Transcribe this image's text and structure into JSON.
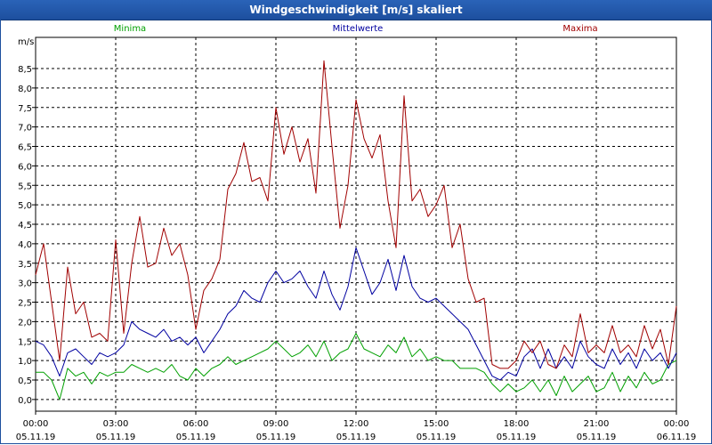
{
  "window": {
    "title": "Windgeschwindigkeit [m/s] skaliert"
  },
  "chart_data": {
    "type": "line",
    "title": "Windgeschwindigkeit [m/s] skaliert",
    "ylabel": "m/s",
    "ylim": [
      -0.3,
      9.3
    ],
    "xlim": [
      0,
      24
    ],
    "grid": true,
    "y_ticks": [
      "0,0",
      "0,5",
      "1,0",
      "1,5",
      "2,0",
      "2,5",
      "3,0",
      "3,5",
      "4,0",
      "4,5",
      "5,0",
      "5,5",
      "6,0",
      "6,5",
      "7,0",
      "7,5",
      "8,0",
      "8,5"
    ],
    "x_ticks": [
      {
        "time": "00:00",
        "date": "05.11.19"
      },
      {
        "time": "03:00",
        "date": "05.11.19"
      },
      {
        "time": "06:00",
        "date": "05.11.19"
      },
      {
        "time": "09:00",
        "date": "05.11.19"
      },
      {
        "time": "12:00",
        "date": "05.11.19"
      },
      {
        "time": "15:00",
        "date": "05.11.19"
      },
      {
        "time": "18:00",
        "date": "05.11.19"
      },
      {
        "time": "21:00",
        "date": "05.11.19"
      },
      {
        "time": "00:00",
        "date": "06.11.19"
      }
    ],
    "series": [
      {
        "name": "Minima",
        "color": "#00a000",
        "x": [
          0,
          0.3,
          0.6,
          0.9,
          1.2,
          1.5,
          1.8,
          2.1,
          2.4,
          2.7,
          3.0,
          3.3,
          3.6,
          3.9,
          4.2,
          4.5,
          4.8,
          5.1,
          5.4,
          5.7,
          6.0,
          6.3,
          6.6,
          6.9,
          7.2,
          7.5,
          7.8,
          8.1,
          8.4,
          8.7,
          9.0,
          9.3,
          9.6,
          9.9,
          10.2,
          10.5,
          10.8,
          11.1,
          11.4,
          11.7,
          12.0,
          12.3,
          12.6,
          12.9,
          13.2,
          13.5,
          13.8,
          14.1,
          14.4,
          14.7,
          15.0,
          15.3,
          15.6,
          15.9,
          16.2,
          16.5,
          16.8,
          17.1,
          17.4,
          17.7,
          18.0,
          18.3,
          18.6,
          18.9,
          19.2,
          19.5,
          19.8,
          20.1,
          20.4,
          20.7,
          21.0,
          21.3,
          21.6,
          21.9,
          22.2,
          22.5,
          22.8,
          23.1,
          23.4,
          23.7,
          24.0
        ],
        "values": [
          0.7,
          0.7,
          0.5,
          0.0,
          0.8,
          0.6,
          0.7,
          0.4,
          0.7,
          0.6,
          0.7,
          0.7,
          0.9,
          0.8,
          0.7,
          0.8,
          0.7,
          0.9,
          0.6,
          0.5,
          0.8,
          0.6,
          0.8,
          0.9,
          1.1,
          0.9,
          1.0,
          1.1,
          1.2,
          1.3,
          1.5,
          1.3,
          1.1,
          1.2,
          1.4,
          1.1,
          1.5,
          1.0,
          1.2,
          1.3,
          1.7,
          1.3,
          1.2,
          1.1,
          1.4,
          1.2,
          1.6,
          1.1,
          1.3,
          1.0,
          1.1,
          1.0,
          1.0,
          0.8,
          0.8,
          0.8,
          0.7,
          0.4,
          0.2,
          0.4,
          0.2,
          0.3,
          0.5,
          0.2,
          0.5,
          0.1,
          0.6,
          0.2,
          0.4,
          0.6,
          0.2,
          0.3,
          0.7,
          0.2,
          0.6,
          0.3,
          0.7,
          0.4,
          0.5,
          0.9,
          1.0
        ]
      },
      {
        "name": "Mittelwerte",
        "color": "#0000a0",
        "x": [
          0,
          0.3,
          0.6,
          0.9,
          1.2,
          1.5,
          1.8,
          2.1,
          2.4,
          2.7,
          3.0,
          3.3,
          3.6,
          3.9,
          4.2,
          4.5,
          4.8,
          5.1,
          5.4,
          5.7,
          6.0,
          6.3,
          6.6,
          6.9,
          7.2,
          7.5,
          7.8,
          8.1,
          8.4,
          8.7,
          9.0,
          9.3,
          9.6,
          9.9,
          10.2,
          10.5,
          10.8,
          11.1,
          11.4,
          11.7,
          12.0,
          12.3,
          12.6,
          12.9,
          13.2,
          13.5,
          13.8,
          14.1,
          14.4,
          14.7,
          15.0,
          15.3,
          15.6,
          15.9,
          16.2,
          16.5,
          16.8,
          17.1,
          17.4,
          17.7,
          18.0,
          18.3,
          18.6,
          18.9,
          19.2,
          19.5,
          19.8,
          20.1,
          20.4,
          20.7,
          21.0,
          21.3,
          21.6,
          21.9,
          22.2,
          22.5,
          22.8,
          23.1,
          23.4,
          23.7,
          24.0
        ],
        "values": [
          1.5,
          1.4,
          1.1,
          0.6,
          1.2,
          1.3,
          1.1,
          0.9,
          1.2,
          1.1,
          1.2,
          1.4,
          2.0,
          1.8,
          1.7,
          1.6,
          1.8,
          1.5,
          1.6,
          1.4,
          1.6,
          1.2,
          1.5,
          1.8,
          2.2,
          2.4,
          2.8,
          2.6,
          2.5,
          3.0,
          3.3,
          3.0,
          3.1,
          3.3,
          2.9,
          2.6,
          3.3,
          2.7,
          2.3,
          2.9,
          3.9,
          3.3,
          2.7,
          3.0,
          3.6,
          2.8,
          3.7,
          2.9,
          2.6,
          2.5,
          2.6,
          2.4,
          2.2,
          2.0,
          1.8,
          1.4,
          1.0,
          0.6,
          0.5,
          0.7,
          0.6,
          1.1,
          1.3,
          0.8,
          1.3,
          0.8,
          1.1,
          0.8,
          1.5,
          1.1,
          0.9,
          0.8,
          1.3,
          0.9,
          1.2,
          0.8,
          1.3,
          1.0,
          1.2,
          0.8,
          1.2
        ]
      },
      {
        "name": "Maxima",
        "color": "#a00000",
        "x": [
          0,
          0.3,
          0.6,
          0.9,
          1.2,
          1.5,
          1.8,
          2.1,
          2.4,
          2.7,
          3.0,
          3.3,
          3.6,
          3.9,
          4.2,
          4.5,
          4.8,
          5.1,
          5.4,
          5.7,
          6.0,
          6.3,
          6.6,
          6.9,
          7.2,
          7.5,
          7.8,
          8.1,
          8.4,
          8.7,
          9.0,
          9.3,
          9.6,
          9.9,
          10.2,
          10.5,
          10.8,
          11.1,
          11.4,
          11.7,
          12.0,
          12.3,
          12.6,
          12.9,
          13.2,
          13.5,
          13.8,
          14.1,
          14.4,
          14.7,
          15.0,
          15.3,
          15.6,
          15.9,
          16.2,
          16.5,
          16.8,
          17.1,
          17.4,
          17.7,
          18.0,
          18.3,
          18.6,
          18.9,
          19.2,
          19.5,
          19.8,
          20.1,
          20.4,
          20.7,
          21.0,
          21.3,
          21.6,
          21.9,
          22.2,
          22.5,
          22.8,
          23.1,
          23.4,
          23.7,
          24.0
        ],
        "values": [
          3.2,
          4.0,
          2.5,
          1.0,
          3.4,
          2.2,
          2.5,
          1.6,
          1.7,
          1.5,
          4.1,
          1.7,
          3.5,
          4.7,
          3.4,
          3.5,
          4.4,
          3.7,
          4.0,
          3.2,
          1.8,
          2.8,
          3.1,
          3.6,
          5.4,
          5.8,
          6.6,
          5.6,
          5.7,
          5.1,
          7.5,
          6.3,
          7.0,
          6.1,
          6.7,
          5.3,
          8.7,
          6.5,
          4.4,
          5.5,
          7.7,
          6.7,
          6.2,
          6.8,
          5.1,
          3.9,
          7.8,
          5.1,
          5.4,
          4.7,
          5.0,
          5.5,
          3.9,
          4.5,
          3.1,
          2.5,
          2.6,
          0.9,
          0.8,
          0.8,
          1.0,
          1.5,
          1.2,
          1.5,
          0.9,
          0.8,
          1.4,
          1.1,
          2.2,
          1.2,
          1.4,
          1.2,
          1.9,
          1.2,
          1.4,
          1.1,
          1.9,
          1.3,
          1.8,
          0.9,
          2.4
        ]
      }
    ]
  }
}
